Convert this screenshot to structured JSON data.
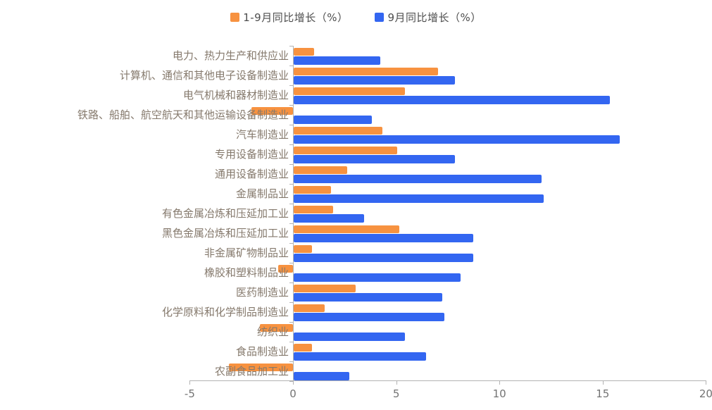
{
  "legend": {
    "items": [
      {
        "label": "1-9月同比增长（%）",
        "color": "#F79240"
      },
      {
        "label": "9月同比增长（%）",
        "color": "#3366F1"
      }
    ]
  },
  "chart_data": {
    "type": "bar",
    "orientation": "horizontal",
    "title": "",
    "xlabel": "",
    "ylabel": "",
    "xlim": [
      -5,
      20
    ],
    "x_ticks": [
      -5,
      0,
      5,
      10,
      15,
      20
    ],
    "grid": false,
    "legend_position": "top-center",
    "categories": [
      "电力、热力生产和供应业",
      "计算机、通信和其他电子设备制造业",
      "电气机械和器材制造业",
      "铁路、船舶、航空航天和其他运输设备制造业",
      "汽车制造业",
      "专用设备制造业",
      "通用设备制造业",
      "金属制品业",
      "有色金属冶炼和压延加工业",
      "黑色金属冶炼和压延加工业",
      "非金属矿物制品业",
      "橡胶和塑料制品业",
      "医药制造业",
      "化学原料和化学制品制造业",
      "纺织业",
      "食品制造业",
      "农副食品加工业"
    ],
    "series": [
      {
        "name": "1-9月同比增长（%）",
        "color": "#F79240",
        "values": [
          1.0,
          7.0,
          5.4,
          -2.0,
          4.3,
          5.0,
          2.6,
          1.8,
          1.9,
          5.1,
          0.9,
          -0.7,
          3.0,
          1.5,
          -1.6,
          0.9,
          -3.1
        ]
      },
      {
        "name": "9月同比增长（%）",
        "color": "#3366F1",
        "values": [
          4.2,
          7.8,
          15.3,
          3.8,
          15.8,
          7.8,
          12.0,
          12.1,
          3.4,
          8.7,
          8.7,
          8.1,
          7.2,
          7.3,
          5.4,
          6.4,
          2.7
        ]
      }
    ],
    "axis_colors": {
      "line": "#b3b3b3",
      "tick_label": "#737373",
      "category_label": "#85796c"
    }
  }
}
